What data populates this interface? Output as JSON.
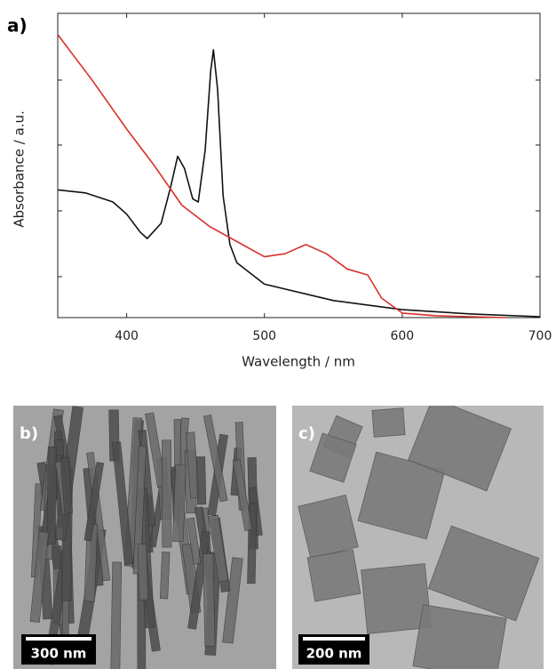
{
  "chart_data": {
    "type": "line",
    "x_label": "Wavelength / nm",
    "y_label": "Absorbance / a.u.",
    "xlim": [
      350,
      700
    ],
    "xticks": [
      400,
      500,
      600,
      700
    ],
    "ylim": [
      0,
      1
    ],
    "series": [
      {
        "color": "#111111",
        "x": [
          350,
          370,
          390,
          400,
          410,
          415,
          425,
          432,
          437,
          442,
          448,
          452,
          457,
          461,
          463,
          466,
          470,
          475,
          480,
          500,
          550,
          600,
          650,
          700
        ],
        "values": [
          0.42,
          0.41,
          0.38,
          0.34,
          0.28,
          0.26,
          0.31,
          0.43,
          0.53,
          0.49,
          0.39,
          0.38,
          0.55,
          0.81,
          0.88,
          0.75,
          0.4,
          0.24,
          0.18,
          0.11,
          0.056,
          0.026,
          0.012,
          0.003
        ]
      },
      {
        "color": "#d9302a",
        "x": [
          350,
          375,
          400,
          420,
          440,
          460,
          480,
          500,
          515,
          530,
          545,
          560,
          575,
          585,
          600,
          625,
          650,
          675
        ],
        "values": [
          0.93,
          0.78,
          0.62,
          0.5,
          0.37,
          0.3,
          0.25,
          0.2,
          0.21,
          0.24,
          0.21,
          0.16,
          0.14,
          0.064,
          0.015,
          0.006,
          0.003,
          0
        ]
      }
    ]
  },
  "panel_labels": [
    "a)",
    "b)",
    "c)"
  ],
  "scale_bars": [
    "300 nm",
    "200 nm"
  ]
}
